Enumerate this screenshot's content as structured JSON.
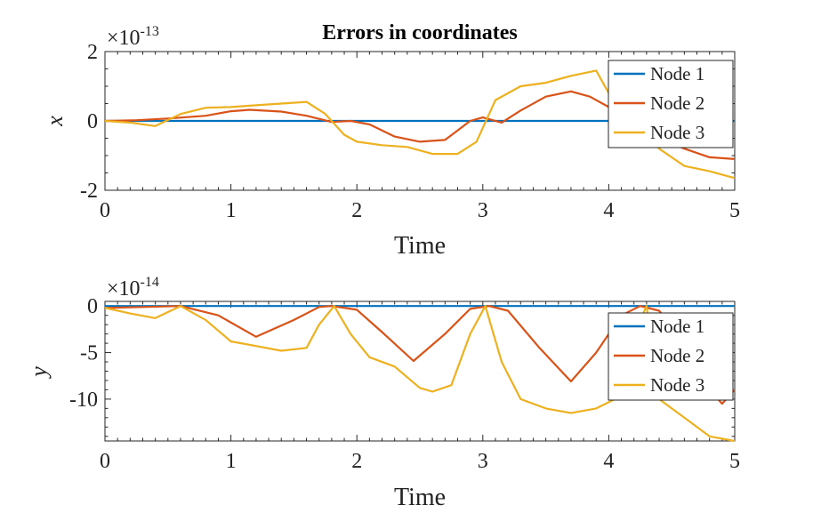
{
  "chart_data": [
    {
      "type": "line",
      "title": "Errors in coordinates",
      "xlabel": "Time",
      "ylabel": "x",
      "exponent_base": "×10",
      "exponent_power": "-13",
      "xlim": [
        0,
        5
      ],
      "ylim": [
        -2,
        2
      ],
      "xticks": [
        "0",
        "1",
        "2",
        "3",
        "4",
        "5"
      ],
      "yticks": [
        "2",
        "0",
        "-2"
      ],
      "ytick_values": [
        2,
        0,
        -2
      ],
      "legend_position": "top-right",
      "series": [
        {
          "name": "Node 1",
          "color": "#0072BD",
          "x": [
            0,
            5
          ],
          "y": [
            0,
            0
          ]
        },
        {
          "name": "Node 2",
          "color": "#D95319",
          "x": [
            0,
            0.25,
            0.5,
            0.8,
            1.0,
            1.15,
            1.4,
            1.6,
            1.8,
            1.95,
            2.1,
            2.3,
            2.5,
            2.7,
            2.9,
            3.0,
            3.15,
            3.3,
            3.5,
            3.7,
            3.85,
            4.0,
            4.2,
            4.4,
            4.6,
            4.8,
            5.0
          ],
          "y": [
            0,
            0.02,
            0.07,
            0.15,
            0.28,
            0.32,
            0.27,
            0.15,
            -0.03,
            0.0,
            -0.1,
            -0.45,
            -0.6,
            -0.55,
            0.0,
            0.1,
            -0.05,
            0.3,
            0.7,
            0.85,
            0.7,
            0.4,
            -0.1,
            -0.5,
            -0.8,
            -1.05,
            -1.1
          ]
        },
        {
          "name": "Node 3",
          "color": "#EDB120",
          "x": [
            0,
            0.2,
            0.4,
            0.6,
            0.8,
            1.0,
            1.2,
            1.4,
            1.6,
            1.75,
            1.9,
            2.0,
            2.2,
            2.4,
            2.6,
            2.8,
            2.95,
            3.1,
            3.3,
            3.5,
            3.7,
            3.9,
            4.0,
            4.2,
            4.4,
            4.6,
            4.8,
            5.0
          ],
          "y": [
            0,
            -0.05,
            -0.15,
            0.2,
            0.38,
            0.4,
            0.45,
            0.5,
            0.55,
            0.2,
            -0.4,
            -0.6,
            -0.7,
            -0.75,
            -0.95,
            -0.95,
            -0.6,
            0.6,
            1.0,
            1.1,
            1.3,
            1.45,
            0.8,
            -0.2,
            -0.8,
            -1.3,
            -1.45,
            -1.65
          ]
        }
      ]
    },
    {
      "type": "line",
      "title": "",
      "xlabel": "Time",
      "ylabel": "y",
      "exponent_base": "×10",
      "exponent_power": "-14",
      "xlim": [
        0,
        5
      ],
      "ylim": [
        -14.5,
        0.5
      ],
      "xticks": [
        "0",
        "1",
        "2",
        "3",
        "4",
        "5"
      ],
      "yticks": [
        "0",
        "-5",
        "-10"
      ],
      "ytick_values": [
        0,
        -5,
        -10
      ],
      "legend_position": "right",
      "series": [
        {
          "name": "Node 1",
          "color": "#0072BD",
          "x": [
            0,
            5
          ],
          "y": [
            0,
            0
          ]
        },
        {
          "name": "Node 2",
          "color": "#D95319",
          "x": [
            0,
            0.3,
            0.6,
            0.9,
            1.2,
            1.5,
            1.7,
            1.8,
            2.0,
            2.2,
            2.45,
            2.7,
            2.9,
            3.05,
            3.2,
            3.45,
            3.7,
            3.9,
            4.1,
            4.25,
            4.4,
            4.6,
            4.75,
            4.9,
            5.0
          ],
          "y": [
            -0.2,
            -0.1,
            0.0,
            -1.0,
            -3.3,
            -1.5,
            -0.1,
            0.0,
            -0.4,
            -2.8,
            -5.9,
            -3.0,
            -0.3,
            0.0,
            -0.5,
            -4.5,
            -8.1,
            -5.0,
            -1.0,
            0.0,
            -0.5,
            -3.5,
            -8.2,
            -10.5,
            -9.0
          ]
        },
        {
          "name": "Node 3",
          "color": "#EDB120",
          "x": [
            0,
            0.2,
            0.4,
            0.6,
            0.8,
            1.0,
            1.2,
            1.4,
            1.6,
            1.7,
            1.82,
            1.95,
            2.1,
            2.3,
            2.5,
            2.6,
            2.75,
            2.9,
            3.02,
            3.15,
            3.3,
            3.5,
            3.7,
            3.9,
            4.05,
            4.2,
            4.3,
            4.4,
            4.6,
            4.8,
            5.0
          ],
          "y": [
            -0.2,
            -0.8,
            -1.3,
            0.0,
            -1.5,
            -3.8,
            -4.3,
            -4.8,
            -4.5,
            -2.0,
            0.0,
            -3.0,
            -5.5,
            -6.5,
            -8.8,
            -9.2,
            -8.5,
            -3.0,
            0.0,
            -6.0,
            -10.0,
            -11.0,
            -11.5,
            -11.0,
            -10.0,
            -3.0,
            0.0,
            -10.0,
            -12.0,
            -14.0,
            -14.5
          ]
        }
      ]
    }
  ]
}
